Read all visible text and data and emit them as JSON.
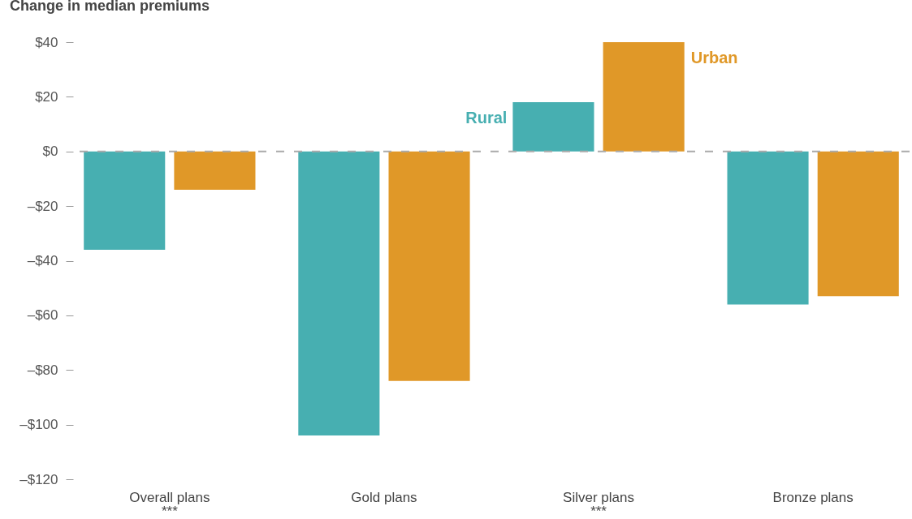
{
  "chart_data": {
    "type": "bar",
    "title": "Change in median premiums",
    "categories": [
      "Overall plans\n***",
      "Gold plans",
      "Silver plans\n***",
      "Bronze plans"
    ],
    "series": [
      {
        "name": "Rural",
        "color": "#47afb1",
        "values": [
          -36,
          -104,
          18,
          -56
        ]
      },
      {
        "name": "Urban",
        "color": "#e09828",
        "values": [
          -14,
          -84,
          40,
          -53
        ]
      }
    ],
    "ylim": [
      -120,
      40
    ],
    "yticks": [
      {
        "value": 40,
        "label": "$40"
      },
      {
        "value": 20,
        "label": "$20"
      },
      {
        "value": 0,
        "label": "$0"
      },
      {
        "value": -20,
        "label": "–$20"
      },
      {
        "value": -40,
        "label": "–$40"
      },
      {
        "value": -60,
        "label": "–$60"
      },
      {
        "value": -80,
        "label": "–$80"
      },
      {
        "value": -100,
        "label": "–$100"
      },
      {
        "value": -120,
        "label": "–$120"
      }
    ],
    "ref_lines": [
      {
        "axis": "y",
        "value": 0,
        "color": "#aaaaaa",
        "line_style": "dashed"
      }
    ],
    "grid": false
  }
}
